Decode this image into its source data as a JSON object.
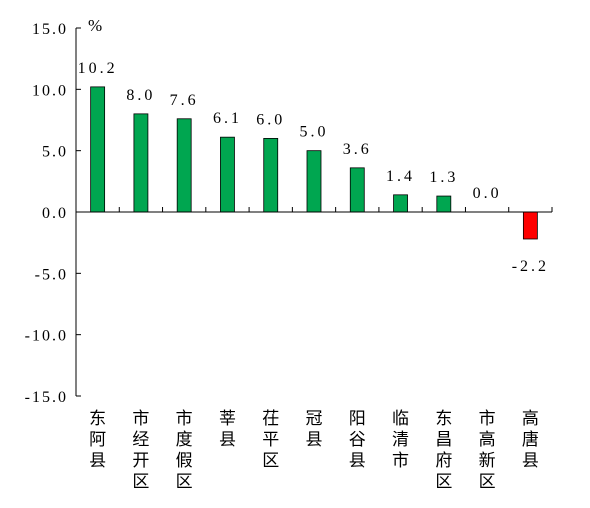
{
  "chart_data": {
    "type": "bar",
    "title": "",
    "xlabel": "",
    "ylabel": "%",
    "ylim": [
      -15,
      15
    ],
    "yticks": [
      "15.0",
      "10.0",
      "5.0",
      "0.0",
      "-5.0",
      "-10.0",
      "-15.0"
    ],
    "ytick_values": [
      15,
      10,
      5,
      0,
      -5,
      -10,
      -15
    ],
    "categories": [
      "东阿县",
      "市经开区",
      "市度假区",
      "莘县",
      "茌平区",
      "冠县",
      "阳谷县",
      "临清市",
      "东昌府区",
      "市高新区",
      "高唐县"
    ],
    "values": [
      10.2,
      8.0,
      7.6,
      6.1,
      6.0,
      5.0,
      3.6,
      1.4,
      1.3,
      0.0,
      -2.2
    ],
    "value_labels": [
      "10.2",
      "8.0",
      "7.6",
      "6.1",
      "6.0",
      "5.0",
      "3.6",
      "1.4",
      "1.3",
      "0.0",
      "-2.2"
    ],
    "grid": false,
    "legend": "none",
    "colors": {
      "positive": "#00a650",
      "negative": "#ff0000",
      "bar_stroke": "#000000",
      "axis": "#000000"
    }
  }
}
